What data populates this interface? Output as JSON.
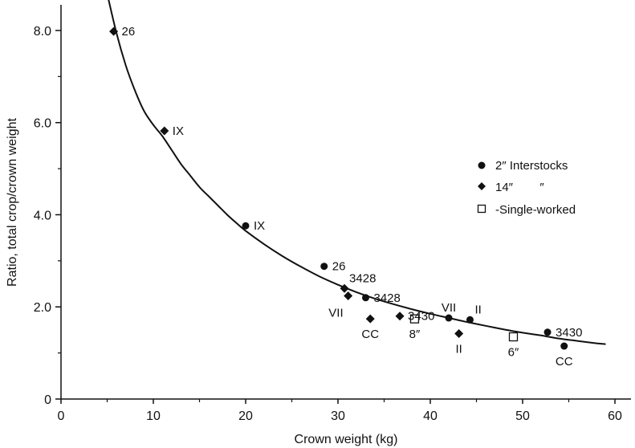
{
  "chart_data": {
    "type": "scatter",
    "xlabel": "Crown weight (kg)",
    "ylabel": "Ratio, total crop/crown weight",
    "xlim": [
      0,
      62
    ],
    "ylim": [
      0,
      8.6
    ],
    "x_ticks": [
      0,
      10,
      20,
      30,
      40,
      50,
      60
    ],
    "x_tick_labels": [
      "0",
      "10",
      "20",
      "30",
      "40",
      "50",
      "60"
    ],
    "y_ticks": [
      0,
      2,
      4,
      6,
      8
    ],
    "y_tick_labels": [
      "0",
      "2.0",
      "4.0",
      "6.0",
      "8.0"
    ],
    "grid": false,
    "legend_position": "right",
    "legend": [
      {
        "marker": "circle",
        "label": "2″ Interstocks"
      },
      {
        "marker": "diamond",
        "label": "14″        ″"
      },
      {
        "marker": "open-square",
        "label": "-Single-worked"
      }
    ],
    "series": [
      {
        "name": "2″ Interstocks",
        "marker": "circle",
        "points": [
          {
            "x": 20.0,
            "y": 3.76,
            "label": "IX",
            "label_pos": "right"
          },
          {
            "x": 28.5,
            "y": 2.88,
            "label": "26",
            "label_pos": "right"
          },
          {
            "x": 33.0,
            "y": 2.2,
            "label": "3428",
            "label_pos": "right"
          },
          {
            "x": 42.0,
            "y": 1.76,
            "label": "VII",
            "label_pos": "above"
          },
          {
            "x": 44.3,
            "y": 1.72,
            "label": "II",
            "label_pos": "above-right"
          },
          {
            "x": 52.7,
            "y": 1.45,
            "label": "3430",
            "label_pos": "right"
          },
          {
            "x": 54.5,
            "y": 1.15,
            "label": "CC",
            "label_pos": "below"
          }
        ]
      },
      {
        "name": "14″",
        "marker": "diamond",
        "points": [
          {
            "x": 5.7,
            "y": 7.98,
            "label": "26",
            "label_pos": "right"
          },
          {
            "x": 11.2,
            "y": 5.82,
            "label": "IX",
            "label_pos": "right"
          },
          {
            "x": 30.7,
            "y": 2.4,
            "label": "3428",
            "label_pos": "above-right"
          },
          {
            "x": 31.1,
            "y": 2.24,
            "label": "VII",
            "label_pos": "below-left"
          },
          {
            "x": 33.5,
            "y": 1.74,
            "label": "CC",
            "label_pos": "below"
          },
          {
            "x": 36.7,
            "y": 1.8,
            "label": "3430",
            "label_pos": "right"
          },
          {
            "x": 43.1,
            "y": 1.42,
            "label": "II",
            "label_pos": "below"
          }
        ]
      },
      {
        "name": "Single-worked",
        "marker": "open-square",
        "points": [
          {
            "x": 38.3,
            "y": 1.74,
            "label": "8″",
            "label_pos": "below"
          },
          {
            "x": 49.0,
            "y": 1.35,
            "label": "6″",
            "label_pos": "below"
          }
        ]
      }
    ],
    "fitted_curve": {
      "points": [
        [
          5.0,
          8.8
        ],
        [
          6.0,
          7.95
        ],
        [
          7.0,
          7.25
        ],
        [
          8.0,
          6.7
        ],
        [
          9.0,
          6.25
        ],
        [
          10.0,
          5.95
        ],
        [
          11.0,
          5.7
        ],
        [
          12.0,
          5.4
        ],
        [
          13.0,
          5.1
        ],
        [
          14.0,
          4.85
        ],
        [
          15.0,
          4.6
        ],
        [
          16.0,
          4.4
        ],
        [
          17.0,
          4.2
        ],
        [
          18.0,
          4.0
        ],
        [
          19.0,
          3.82
        ],
        [
          20.0,
          3.65
        ],
        [
          22.0,
          3.36
        ],
        [
          24.0,
          3.1
        ],
        [
          26.0,
          2.87
        ],
        [
          28.0,
          2.66
        ],
        [
          30.0,
          2.48
        ],
        [
          32.0,
          2.32
        ],
        [
          34.0,
          2.18
        ],
        [
          36.0,
          2.06
        ],
        [
          38.0,
          1.95
        ],
        [
          40.0,
          1.85
        ],
        [
          42.0,
          1.76
        ],
        [
          44.0,
          1.67
        ],
        [
          46.0,
          1.59
        ],
        [
          48.0,
          1.51
        ],
        [
          50.0,
          1.44
        ],
        [
          52.0,
          1.38
        ],
        [
          54.0,
          1.31
        ],
        [
          56.0,
          1.26
        ],
        [
          58.0,
          1.21
        ],
        [
          59.0,
          1.19
        ]
      ]
    }
  }
}
